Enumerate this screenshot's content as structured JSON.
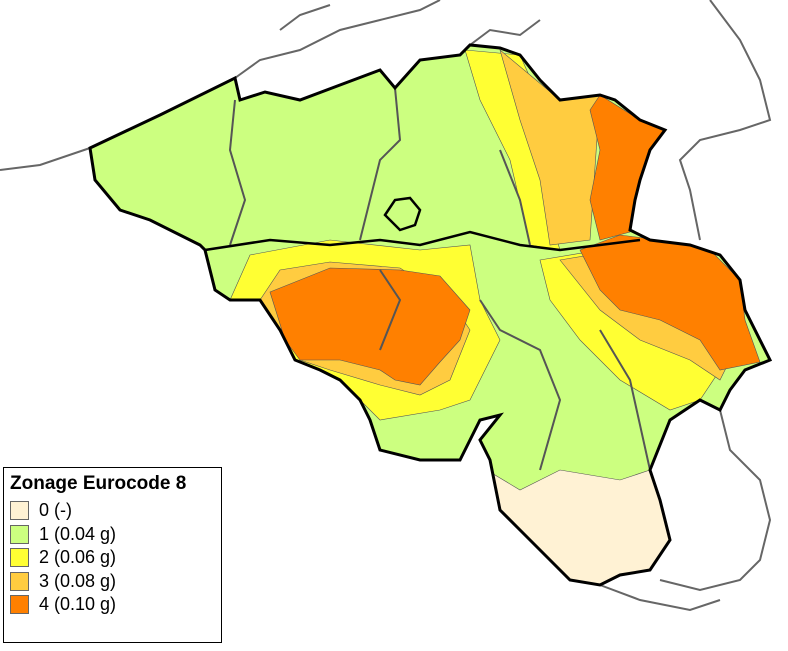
{
  "legend": {
    "title": "Zonage Eurocode 8",
    "items": [
      {
        "label": "0 (-)",
        "color": "#fff2d4"
      },
      {
        "label": "1 (0.04 g)",
        "color": "#ccff80"
      },
      {
        "label": "2 (0.06 g)",
        "color": "#ffff33"
      },
      {
        "label": "3 (0.08 g)",
        "color": "#ffcc40"
      },
      {
        "label": "4 (0.10 g)",
        "color": "#ff8000"
      }
    ]
  }
}
